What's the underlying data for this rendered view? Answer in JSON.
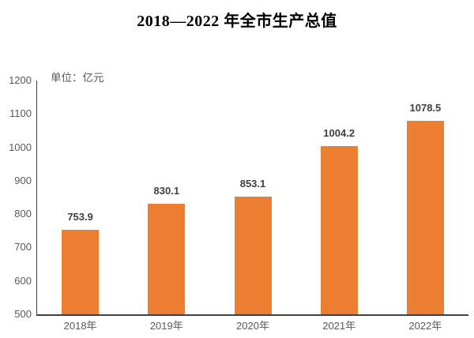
{
  "title": "2018—2022 年全市生产总值",
  "unit_label": "单位：亿元",
  "colors": {
    "bar": "#ED7D31",
    "axis_line": "#404040",
    "axis_text": "#595959",
    "data_label_text": "#404040",
    "title_text": "#000000"
  },
  "chart_data": {
    "type": "bar",
    "title": "2018—2022 年全市生产总值",
    "categories": [
      "2018年",
      "2019年",
      "2020年",
      "2021年",
      "2022年"
    ],
    "values": [
      753.9,
      830.1,
      853.1,
      1004.2,
      1078.5
    ],
    "data_labels": [
      "753.9",
      "830.1",
      "853.1",
      "1004.2",
      "1078.5"
    ],
    "xlabel": "",
    "ylabel": "单位：亿元",
    "ylim": [
      500,
      1200
    ],
    "ytick_step": 100,
    "ytick_labels": [
      "500",
      "600",
      "700",
      "800",
      "900",
      "1000",
      "1100",
      "1200"
    ],
    "grid": false,
    "legend": null,
    "bar_color": "#ED7D31"
  }
}
